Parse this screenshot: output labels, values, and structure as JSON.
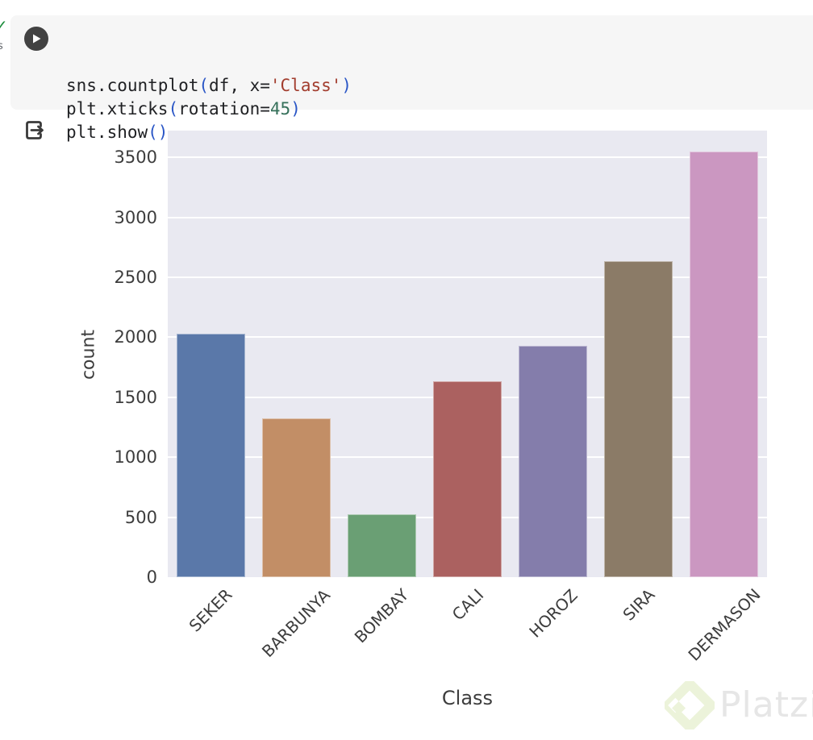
{
  "colors": {
    "cell_bg": "#f6f6f6",
    "run_button_bg": "#424242",
    "icon_dark": "#3a3a3a",
    "code_plain": "#202124",
    "code_bracket": "#2a56c6",
    "code_string": "#a23d2e",
    "code_number": "#35705a",
    "exec_check_green": "#1e8e3e",
    "plot_background": "#e9e9f1",
    "grid_color": "#ffffff",
    "tick_text": "#3d3d3d",
    "watermark_text_color": "#e6e6e6",
    "watermark_logo_color": "#e9f2d4"
  },
  "notebook": {
    "gutter": {
      "exec_check_icon": "✓",
      "exec_time_fragment": "s"
    },
    "icons": {
      "run_icon": "play-triangle",
      "output_icon": "export-arrow"
    },
    "code_cell": {
      "token_colors": {
        "plain": "#202124",
        "bracket": "#2a56c6",
        "string": "#a23d2e",
        "number": "#35705a"
      },
      "lines": [
        [
          {
            "t": "sns.countplot",
            "c": "plain"
          },
          {
            "t": "(",
            "c": "bracket"
          },
          {
            "t": "df, x=",
            "c": "plain"
          },
          {
            "t": "'Class'",
            "c": "string"
          },
          {
            "t": ")",
            "c": "bracket"
          }
        ],
        [
          {
            "t": "plt.xticks",
            "c": "plain"
          },
          {
            "t": "(",
            "c": "bracket"
          },
          {
            "t": "rotation=",
            "c": "plain"
          },
          {
            "t": "45",
            "c": "number"
          },
          {
            "t": ")",
            "c": "bracket"
          }
        ],
        [
          {
            "t": "plt.show",
            "c": "plain"
          },
          {
            "t": "()",
            "c": "bracket"
          }
        ]
      ]
    }
  },
  "output": {
    "chart_data": {
      "type": "bar",
      "title": "",
      "xlabel": "Class",
      "ylabel": "count",
      "categories": [
        "SEKER",
        "BARBUNYA",
        "BOMBAY",
        "CALI",
        "HOROZ",
        "SIRA",
        "DERMASON"
      ],
      "values": [
        2027,
        1322,
        522,
        1630,
        1928,
        2636,
        3546
      ],
      "bar_colors": [
        "#5a78a9",
        "#c28e66",
        "#6a9f74",
        "#ab6160",
        "#847dab",
        "#8b7b67",
        "#cb97c1"
      ],
      "yticks": [
        0,
        500,
        1000,
        1500,
        2000,
        2500,
        3000,
        3500
      ],
      "ylim": [
        0,
        3723
      ],
      "grid": true,
      "legend": "none",
      "xtick_rotation": 45
    }
  },
  "watermark": {
    "label": "Platzi",
    "logo_icon": "platzi-diamond"
  }
}
